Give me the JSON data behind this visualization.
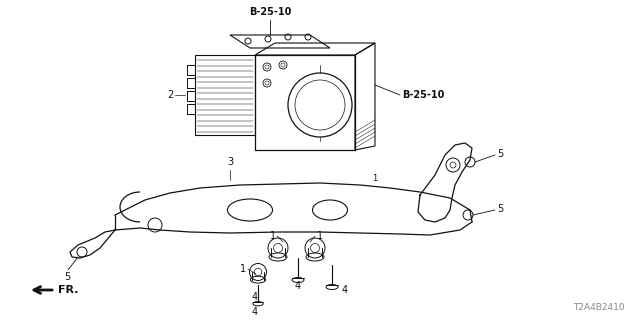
{
  "bg_color": "#ffffff",
  "diagram_id": "T2A4B2410",
  "labels": {
    "B25_10_top": "B-25-10",
    "B25_10_right": "B-25-10",
    "label_2": "2",
    "label_3": "3",
    "label_5_top_right": "5",
    "label_5_bottom_right": "5",
    "label_5_bottom_left": "5",
    "label_1_a": "1",
    "label_1_b": "1",
    "label_1_c": "1",
    "label_4_a": "4",
    "label_4_b": "4",
    "label_4_c": "4",
    "label_4_d": "4",
    "fr_label": "FR."
  },
  "line_color": "#111111",
  "text_color": "#111111",
  "gray_color": "#888888"
}
